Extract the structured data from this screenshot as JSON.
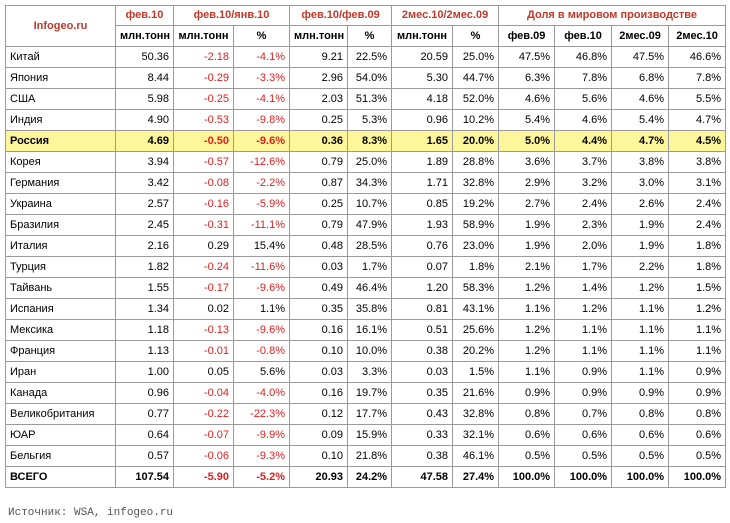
{
  "header": {
    "brand": "Infogeo.ru",
    "feb10": "фев.10",
    "feb10_unit": "млн.тонн",
    "mm": "фев.10/янв.10",
    "yy": "фев.10/фев.09",
    "ytd": "2мес.10/2мес.09",
    "share": "Доля в мировом производстве",
    "sub_mt": "млн.тонн",
    "sub_pct": "%",
    "share_cols": [
      "фев.09",
      "фев.10",
      "2мес.09",
      "2мес.10"
    ]
  },
  "rows": [
    {
      "c": "Китай",
      "v": "50.36",
      "mm": "-2.18",
      "mmp": "-4.1%",
      "yy": "9.21",
      "yyp": "22.5%",
      "ytd": "20.59",
      "ytdp": "25.0%",
      "s1": "47.5%",
      "s2": "46.8%",
      "s3": "47.5%",
      "s4": "46.6%"
    },
    {
      "c": "Япония",
      "v": "8.44",
      "mm": "-0.29",
      "mmp": "-3.3%",
      "yy": "2.96",
      "yyp": "54.0%",
      "ytd": "5.30",
      "ytdp": "44.7%",
      "s1": "6.3%",
      "s2": "7.8%",
      "s3": "6.8%",
      "s4": "7.8%"
    },
    {
      "c": "США",
      "v": "5.98",
      "mm": "-0.25",
      "mmp": "-4.1%",
      "yy": "2.03",
      "yyp": "51.3%",
      "ytd": "4.18",
      "ytdp": "52.0%",
      "s1": "4.6%",
      "s2": "5.6%",
      "s3": "4.6%",
      "s4": "5.5%"
    },
    {
      "c": "Индия",
      "v": "4.90",
      "mm": "-0.53",
      "mmp": "-9.8%",
      "yy": "0.25",
      "yyp": "5.3%",
      "ytd": "0.96",
      "ytdp": "10.2%",
      "s1": "5.4%",
      "s2": "4.6%",
      "s3": "5.4%",
      "s4": "4.7%"
    },
    {
      "c": "Россия",
      "v": "4.69",
      "mm": "-0.50",
      "mmp": "-9.6%",
      "yy": "0.36",
      "yyp": "8.3%",
      "ytd": "1.65",
      "ytdp": "20.0%",
      "s1": "5.0%",
      "s2": "4.4%",
      "s3": "4.7%",
      "s4": "4.5%",
      "hl": true
    },
    {
      "c": "Корея",
      "v": "3.94",
      "mm": "-0.57",
      "mmp": "-12.6%",
      "yy": "0.79",
      "yyp": "25.0%",
      "ytd": "1.89",
      "ytdp": "28.8%",
      "s1": "3.6%",
      "s2": "3.7%",
      "s3": "3.8%",
      "s4": "3.8%"
    },
    {
      "c": "Германия",
      "v": "3.42",
      "mm": "-0.08",
      "mmp": "-2.2%",
      "yy": "0.87",
      "yyp": "34.3%",
      "ytd": "1.71",
      "ytdp": "32.8%",
      "s1": "2.9%",
      "s2": "3.2%",
      "s3": "3.0%",
      "s4": "3.1%"
    },
    {
      "c": "Украина",
      "v": "2.57",
      "mm": "-0.16",
      "mmp": "-5.9%",
      "yy": "0.25",
      "yyp": "10.7%",
      "ytd": "0.85",
      "ytdp": "19.2%",
      "s1": "2.7%",
      "s2": "2.4%",
      "s3": "2.6%",
      "s4": "2.4%"
    },
    {
      "c": "Бразилия",
      "v": "2.45",
      "mm": "-0.31",
      "mmp": "-11.1%",
      "yy": "0.79",
      "yyp": "47.9%",
      "ytd": "1.93",
      "ytdp": "58.9%",
      "s1": "1.9%",
      "s2": "2.3%",
      "s3": "1.9%",
      "s4": "2.4%"
    },
    {
      "c": "Италия",
      "v": "2.16",
      "mm": "0.29",
      "mmp": "15.4%",
      "yy": "0.48",
      "yyp": "28.5%",
      "ytd": "0.76",
      "ytdp": "23.0%",
      "s1": "1.9%",
      "s2": "2.0%",
      "s3": "1.9%",
      "s4": "1.8%"
    },
    {
      "c": "Турция",
      "v": "1.82",
      "mm": "-0.24",
      "mmp": "-11.6%",
      "yy": "0.03",
      "yyp": "1.7%",
      "ytd": "0.07",
      "ytdp": "1.8%",
      "s1": "2.1%",
      "s2": "1.7%",
      "s3": "2.2%",
      "s4": "1.8%"
    },
    {
      "c": "Тайвань",
      "v": "1.55",
      "mm": "-0.17",
      "mmp": "-9.6%",
      "yy": "0.49",
      "yyp": "46.4%",
      "ytd": "1.20",
      "ytdp": "58.3%",
      "s1": "1.2%",
      "s2": "1.4%",
      "s3": "1.2%",
      "s4": "1.5%"
    },
    {
      "c": "Испания",
      "v": "1.34",
      "mm": "0.02",
      "mmp": "1.1%",
      "yy": "0.35",
      "yyp": "35.8%",
      "ytd": "0.81",
      "ytdp": "43.1%",
      "s1": "1.1%",
      "s2": "1.2%",
      "s3": "1.1%",
      "s4": "1.2%"
    },
    {
      "c": "Мексика",
      "v": "1.18",
      "mm": "-0.13",
      "mmp": "-9.6%",
      "yy": "0.16",
      "yyp": "16.1%",
      "ytd": "0.51",
      "ytdp": "25.6%",
      "s1": "1.2%",
      "s2": "1.1%",
      "s3": "1.1%",
      "s4": "1.1%"
    },
    {
      "c": "Франция",
      "v": "1.13",
      "mm": "-0.01",
      "mmp": "-0.8%",
      "yy": "0.10",
      "yyp": "10.0%",
      "ytd": "0.38",
      "ytdp": "20.2%",
      "s1": "1.2%",
      "s2": "1.1%",
      "s3": "1.1%",
      "s4": "1.1%"
    },
    {
      "c": "Иран",
      "v": "1.00",
      "mm": "0.05",
      "mmp": "5.6%",
      "yy": "0.03",
      "yyp": "3.3%",
      "ytd": "0.03",
      "ytdp": "1.5%",
      "s1": "1.1%",
      "s2": "0.9%",
      "s3": "1.1%",
      "s4": "0.9%"
    },
    {
      "c": "Канада",
      "v": "0.96",
      "mm": "-0.04",
      "mmp": "-4.0%",
      "yy": "0.16",
      "yyp": "19.7%",
      "ytd": "0.35",
      "ytdp": "21.6%",
      "s1": "0.9%",
      "s2": "0.9%",
      "s3": "0.9%",
      "s4": "0.9%"
    },
    {
      "c": "Великобритания",
      "v": "0.77",
      "mm": "-0.22",
      "mmp": "-22.3%",
      "yy": "0.12",
      "yyp": "17.7%",
      "ytd": "0.43",
      "ytdp": "32.8%",
      "s1": "0.8%",
      "s2": "0.7%",
      "s3": "0.8%",
      "s4": "0.8%"
    },
    {
      "c": "ЮАР",
      "v": "0.64",
      "mm": "-0.07",
      "mmp": "-9.9%",
      "yy": "0.09",
      "yyp": "15.9%",
      "ytd": "0.33",
      "ytdp": "32.1%",
      "s1": "0.6%",
      "s2": "0.6%",
      "s3": "0.6%",
      "s4": "0.6%"
    },
    {
      "c": "Бельгия",
      "v": "0.57",
      "mm": "-0.06",
      "mmp": "-9.3%",
      "yy": "0.10",
      "yyp": "21.8%",
      "ytd": "0.38",
      "ytdp": "46.1%",
      "s1": "0.5%",
      "s2": "0.5%",
      "s3": "0.5%",
      "s4": "0.5%"
    }
  ],
  "total": {
    "c": "ВСЕГО",
    "v": "107.54",
    "mm": "-5.90",
    "mmp": "-5.2%",
    "yy": "20.93",
    "yyp": "24.2%",
    "ytd": "47.58",
    "ytdp": "27.4%",
    "s1": "100.0%",
    "s2": "100.0%",
    "s3": "100.0%",
    "s4": "100.0%"
  },
  "source": "Источник: WSA, infogeo.ru",
  "colors": {
    "negative": "#e02020",
    "header_red": "#c0392b",
    "highlight": "#fef69a"
  }
}
